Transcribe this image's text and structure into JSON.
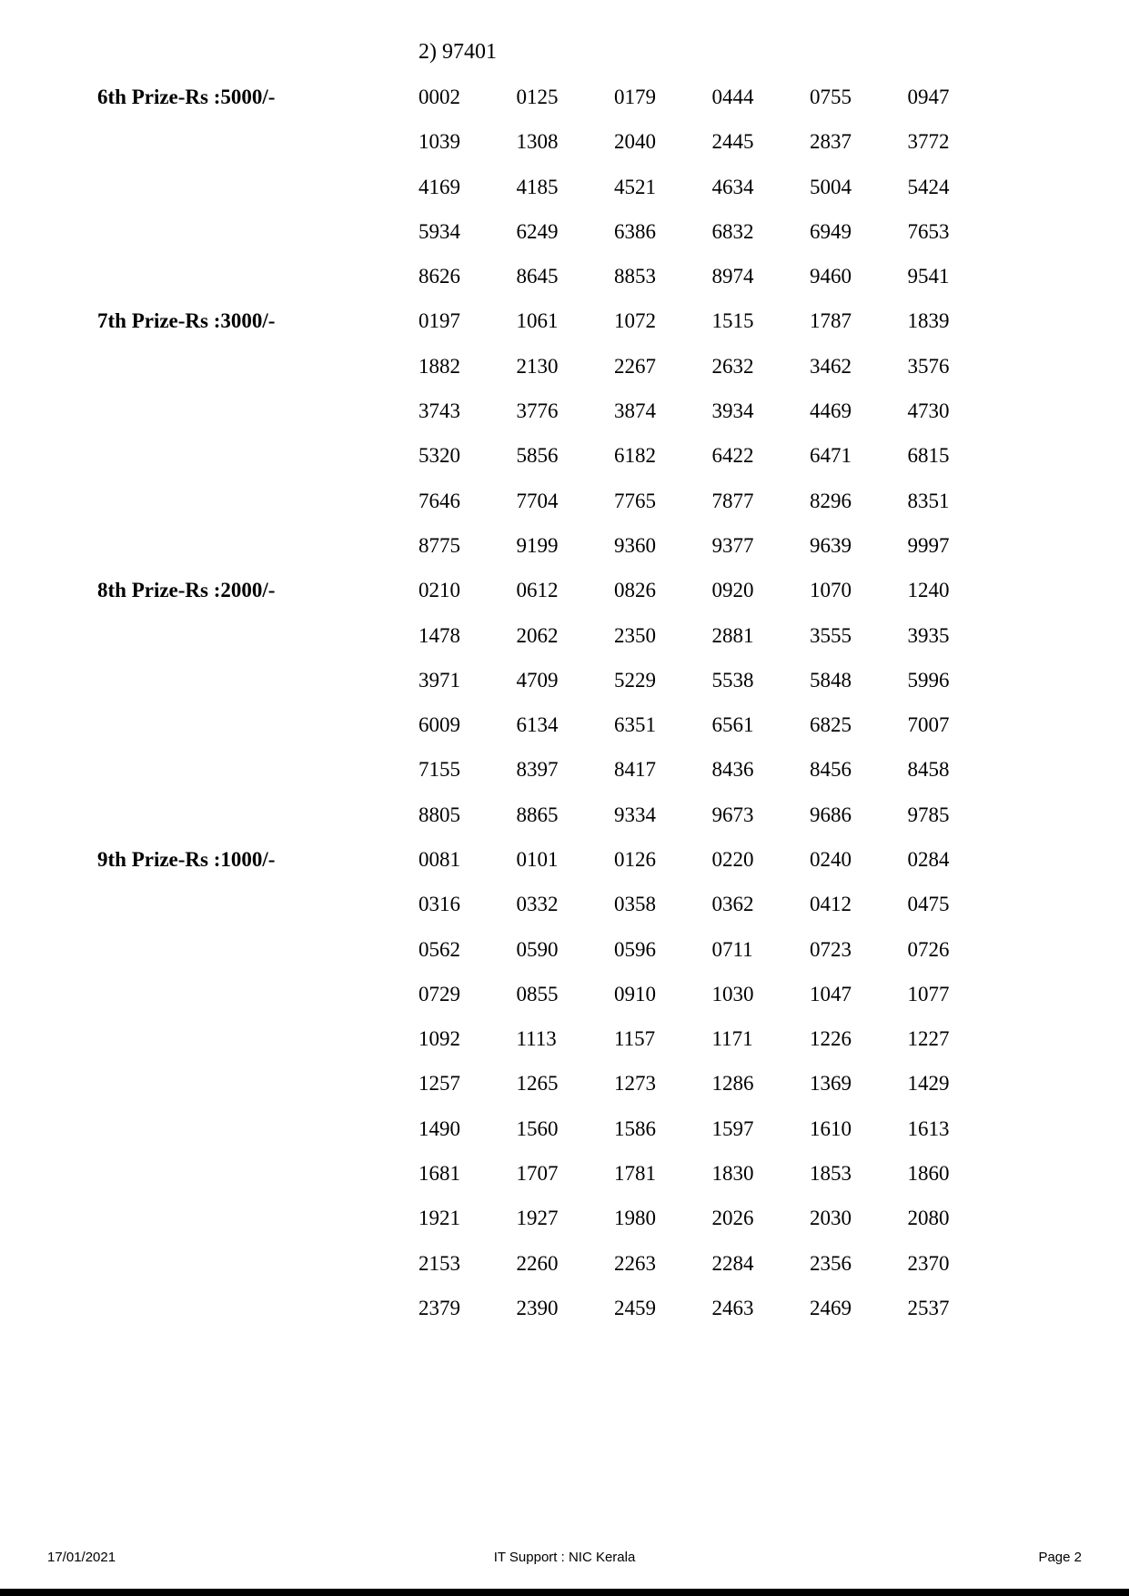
{
  "page": {
    "background": "#ffffff",
    "text_color": "#000000"
  },
  "continuation_note": "2) 97401",
  "sections": [
    {
      "label": "6th Prize-Rs :5000/-",
      "rows": [
        [
          "0002",
          "0125",
          "0179",
          "0444",
          "0755",
          "0947"
        ],
        [
          "1039",
          "1308",
          "2040",
          "2445",
          "2837",
          "3772"
        ],
        [
          "4169",
          "4185",
          "4521",
          "4634",
          "5004",
          "5424"
        ],
        [
          "5934",
          "6249",
          "6386",
          "6832",
          "6949",
          "7653"
        ],
        [
          "8626",
          "8645",
          "8853",
          "8974",
          "9460",
          "9541"
        ]
      ]
    },
    {
      "label": "7th Prize-Rs :3000/-",
      "rows": [
        [
          "0197",
          "1061",
          "1072",
          "1515",
          "1787",
          "1839"
        ],
        [
          "1882",
          "2130",
          "2267",
          "2632",
          "3462",
          "3576"
        ],
        [
          "3743",
          "3776",
          "3874",
          "3934",
          "4469",
          "4730"
        ],
        [
          "5320",
          "5856",
          "6182",
          "6422",
          "6471",
          "6815"
        ],
        [
          "7646",
          "7704",
          "7765",
          "7877",
          "8296",
          "8351"
        ],
        [
          "8775",
          "9199",
          "9360",
          "9377",
          "9639",
          "9997"
        ]
      ]
    },
    {
      "label": "8th Prize-Rs :2000/-",
      "rows": [
        [
          "0210",
          "0612",
          "0826",
          "0920",
          "1070",
          "1240"
        ],
        [
          "1478",
          "2062",
          "2350",
          "2881",
          "3555",
          "3935"
        ],
        [
          "3971",
          "4709",
          "5229",
          "5538",
          "5848",
          "5996"
        ],
        [
          "6009",
          "6134",
          "6351",
          "6561",
          "6825",
          "7007"
        ],
        [
          "7155",
          "8397",
          "8417",
          "8436",
          "8456",
          "8458"
        ],
        [
          "8805",
          "8865",
          "9334",
          "9673",
          "9686",
          "9785"
        ]
      ]
    },
    {
      "label": "9th Prize-Rs :1000/-",
      "rows": [
        [
          "0081",
          "0101",
          "0126",
          "0220",
          "0240",
          "0284"
        ],
        [
          "0316",
          "0332",
          "0358",
          "0362",
          "0412",
          "0475"
        ],
        [
          "0562",
          "0590",
          "0596",
          "0711",
          "0723",
          "0726"
        ],
        [
          "0729",
          "0855",
          "0910",
          "1030",
          "1047",
          "1077"
        ],
        [
          "1092",
          "1113",
          "1157",
          "1171",
          "1226",
          "1227"
        ],
        [
          "1257",
          "1265",
          "1273",
          "1286",
          "1369",
          "1429"
        ],
        [
          "1490",
          "1560",
          "1586",
          "1597",
          "1610",
          "1613"
        ],
        [
          "1681",
          "1707",
          "1781",
          "1830",
          "1853",
          "1860"
        ],
        [
          "1921",
          "1927",
          "1980",
          "2026",
          "2030",
          "2080"
        ],
        [
          "2153",
          "2260",
          "2263",
          "2284",
          "2356",
          "2370"
        ],
        [
          "2379",
          "2390",
          "2459",
          "2463",
          "2469",
          "2537"
        ]
      ]
    }
  ],
  "footer": {
    "date": "17/01/2021",
    "support": "IT Support : NIC Kerala",
    "page_label": "Page 2"
  }
}
